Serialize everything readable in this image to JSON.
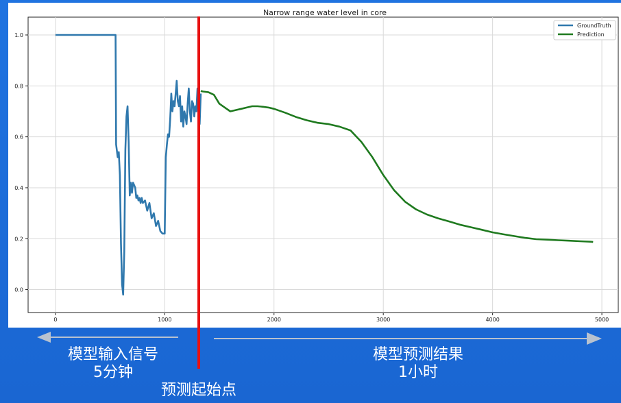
{
  "colors": {
    "background": "#1e6fd9",
    "plot_background": "#ffffff",
    "ground_truth": "#2f78ad",
    "prediction": "#1f7a1f",
    "split_line": "#e81010",
    "arrow": "#b8c2cf",
    "overlay_text": "#ffffff"
  },
  "annotations": {
    "left_label_line1": "模型输入信号",
    "left_label_line2": "5分钟",
    "right_label_line1": "模型预测结果",
    "right_label_line2": "1小时",
    "split_label": "预测起始点"
  },
  "chart_data": {
    "type": "line",
    "title": "Narrow range water level in core",
    "xlabel": "",
    "ylabel": "",
    "xlim": [
      -250,
      5150
    ],
    "ylim": [
      -0.09,
      1.07
    ],
    "xticks": [
      0,
      1000,
      2000,
      3000,
      4000,
      5000
    ],
    "xtick_labels": [
      "0",
      "1000",
      "2000",
      "3000",
      "4000",
      "5000"
    ],
    "yticks": [
      0.0,
      0.2,
      0.4,
      0.6,
      0.8,
      1.0
    ],
    "ytick_labels": [
      "0.0",
      "0.2",
      "0.4",
      "0.6",
      "0.8",
      "1.0"
    ],
    "grid": true,
    "legend": "top-right",
    "split_x": 1330,
    "series": [
      {
        "name": "GroundTruth",
        "x": [
          0,
          550,
          555,
          570,
          580,
          590,
          600,
          610,
          620,
          630,
          640,
          650,
          660,
          670,
          680,
          690,
          700,
          710,
          720,
          730,
          740,
          750,
          760,
          770,
          780,
          790,
          800,
          820,
          840,
          860,
          880,
          900,
          920,
          940,
          960,
          980,
          1000,
          1010,
          1020,
          1030,
          1040,
          1050,
          1060,
          1070,
          1080,
          1090,
          1100,
          1110,
          1120,
          1130,
          1140,
          1150,
          1160,
          1170,
          1180,
          1190,
          1200,
          1210,
          1220,
          1230,
          1240,
          1250,
          1260,
          1270,
          1280,
          1290,
          1300,
          1310,
          1320,
          1330
        ],
        "y": [
          1.0,
          1.0,
          0.57,
          0.52,
          0.54,
          0.45,
          0.18,
          0.02,
          -0.02,
          0.15,
          0.55,
          0.68,
          0.72,
          0.58,
          0.37,
          0.42,
          0.38,
          0.42,
          0.41,
          0.4,
          0.36,
          0.37,
          0.35,
          0.36,
          0.34,
          0.36,
          0.34,
          0.35,
          0.31,
          0.34,
          0.28,
          0.3,
          0.25,
          0.27,
          0.23,
          0.22,
          0.22,
          0.52,
          0.57,
          0.61,
          0.6,
          0.67,
          0.77,
          0.7,
          0.74,
          0.72,
          0.77,
          0.82,
          0.74,
          0.72,
          0.76,
          0.66,
          0.72,
          0.64,
          0.7,
          0.68,
          0.65,
          0.73,
          0.79,
          0.7,
          0.66,
          0.74,
          0.73,
          0.68,
          0.72,
          0.7,
          0.79,
          0.73,
          0.65,
          0.77
        ]
      },
      {
        "name": "Prediction",
        "x": [
          1330,
          1350,
          1400,
          1450,
          1500,
          1550,
          1600,
          1650,
          1700,
          1750,
          1800,
          1850,
          1900,
          1950,
          2000,
          2100,
          2200,
          2300,
          2400,
          2500,
          2600,
          2700,
          2800,
          2900,
          3000,
          3100,
          3200,
          3300,
          3400,
          3500,
          3600,
          3700,
          3800,
          3900,
          4000,
          4100,
          4200,
          4300,
          4400,
          4500,
          4600,
          4700,
          4800,
          4900,
          4920
        ],
        "y": [
          0.78,
          0.778,
          0.775,
          0.765,
          0.73,
          0.715,
          0.7,
          0.705,
          0.71,
          0.715,
          0.72,
          0.72,
          0.718,
          0.715,
          0.71,
          0.695,
          0.678,
          0.665,
          0.655,
          0.65,
          0.64,
          0.625,
          0.58,
          0.52,
          0.45,
          0.39,
          0.345,
          0.315,
          0.295,
          0.28,
          0.268,
          0.255,
          0.245,
          0.235,
          0.225,
          0.217,
          0.21,
          0.203,
          0.198,
          0.196,
          0.194,
          0.192,
          0.19,
          0.188,
          0.187
        ]
      }
    ]
  }
}
